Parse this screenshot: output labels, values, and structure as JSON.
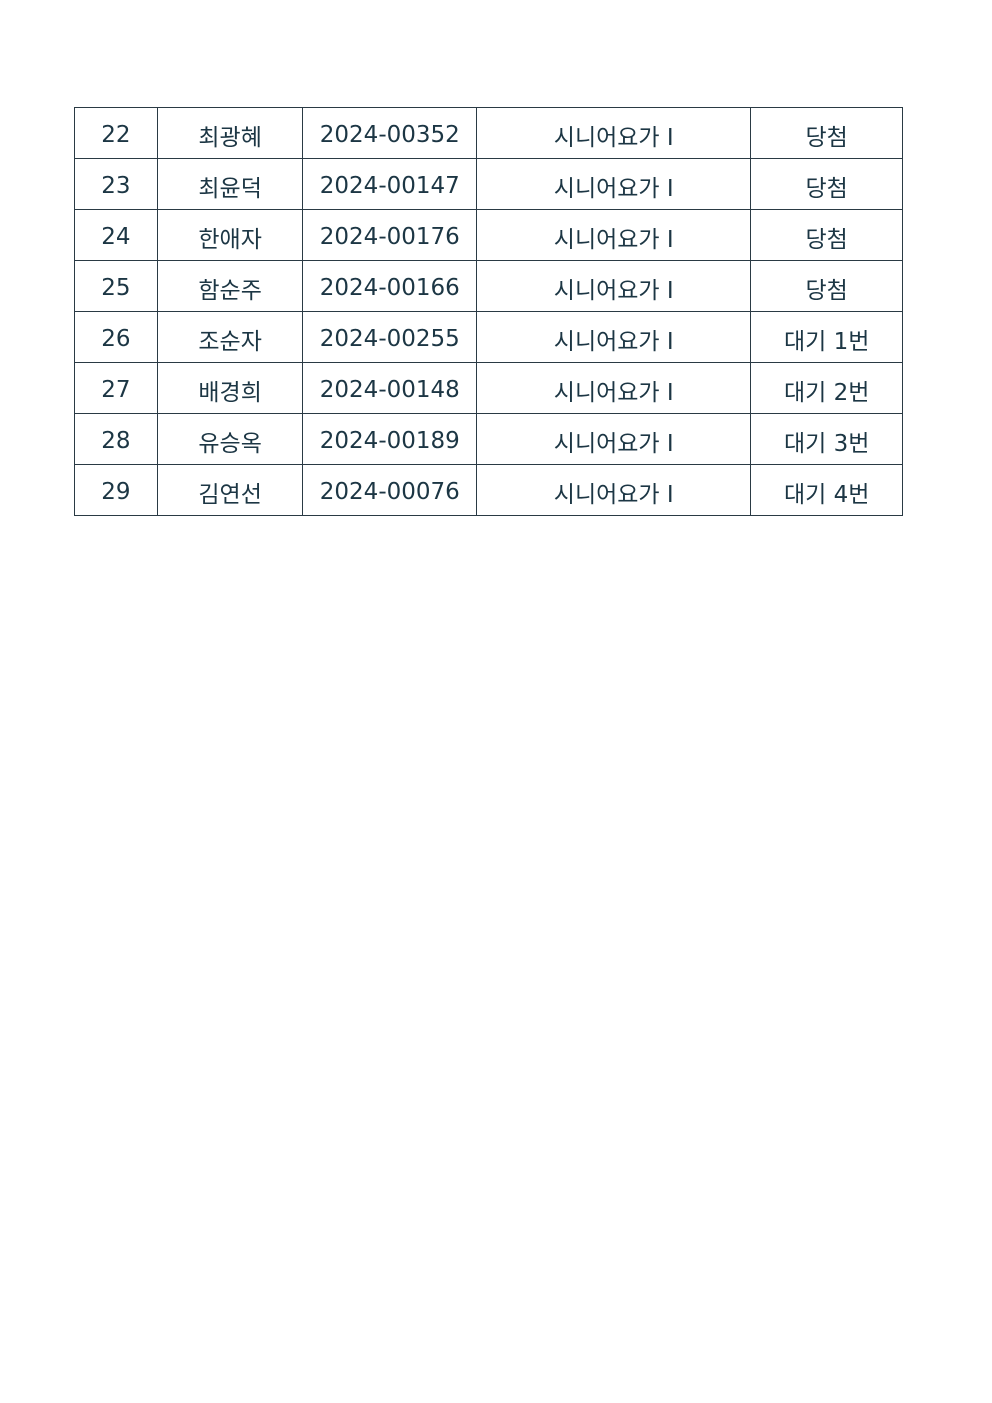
{
  "table": {
    "rows": [
      [
        "22",
        "최광혜",
        "2024-00352",
        "시니어요가 I",
        "당첨"
      ],
      [
        "23",
        "최윤덕",
        "2024-00147",
        "시니어요가 I",
        "당첨"
      ],
      [
        "24",
        "한애자",
        "2024-00176",
        "시니어요가 I",
        "당첨"
      ],
      [
        "25",
        "함순주",
        "2024-00166",
        "시니어요가 I",
        "당첨"
      ],
      [
        "26",
        "조순자",
        "2024-00255",
        "시니어요가 I",
        "대기 1번"
      ],
      [
        "27",
        "배경희",
        "2024-00148",
        "시니어요가 I",
        "대기 2번"
      ],
      [
        "28",
        "유승옥",
        "2024-00189",
        "시니어요가 I",
        "대기 3번"
      ],
      [
        "29",
        "김연선",
        "2024-00076",
        "시니어요가 I",
        "대기 4번"
      ]
    ]
  }
}
